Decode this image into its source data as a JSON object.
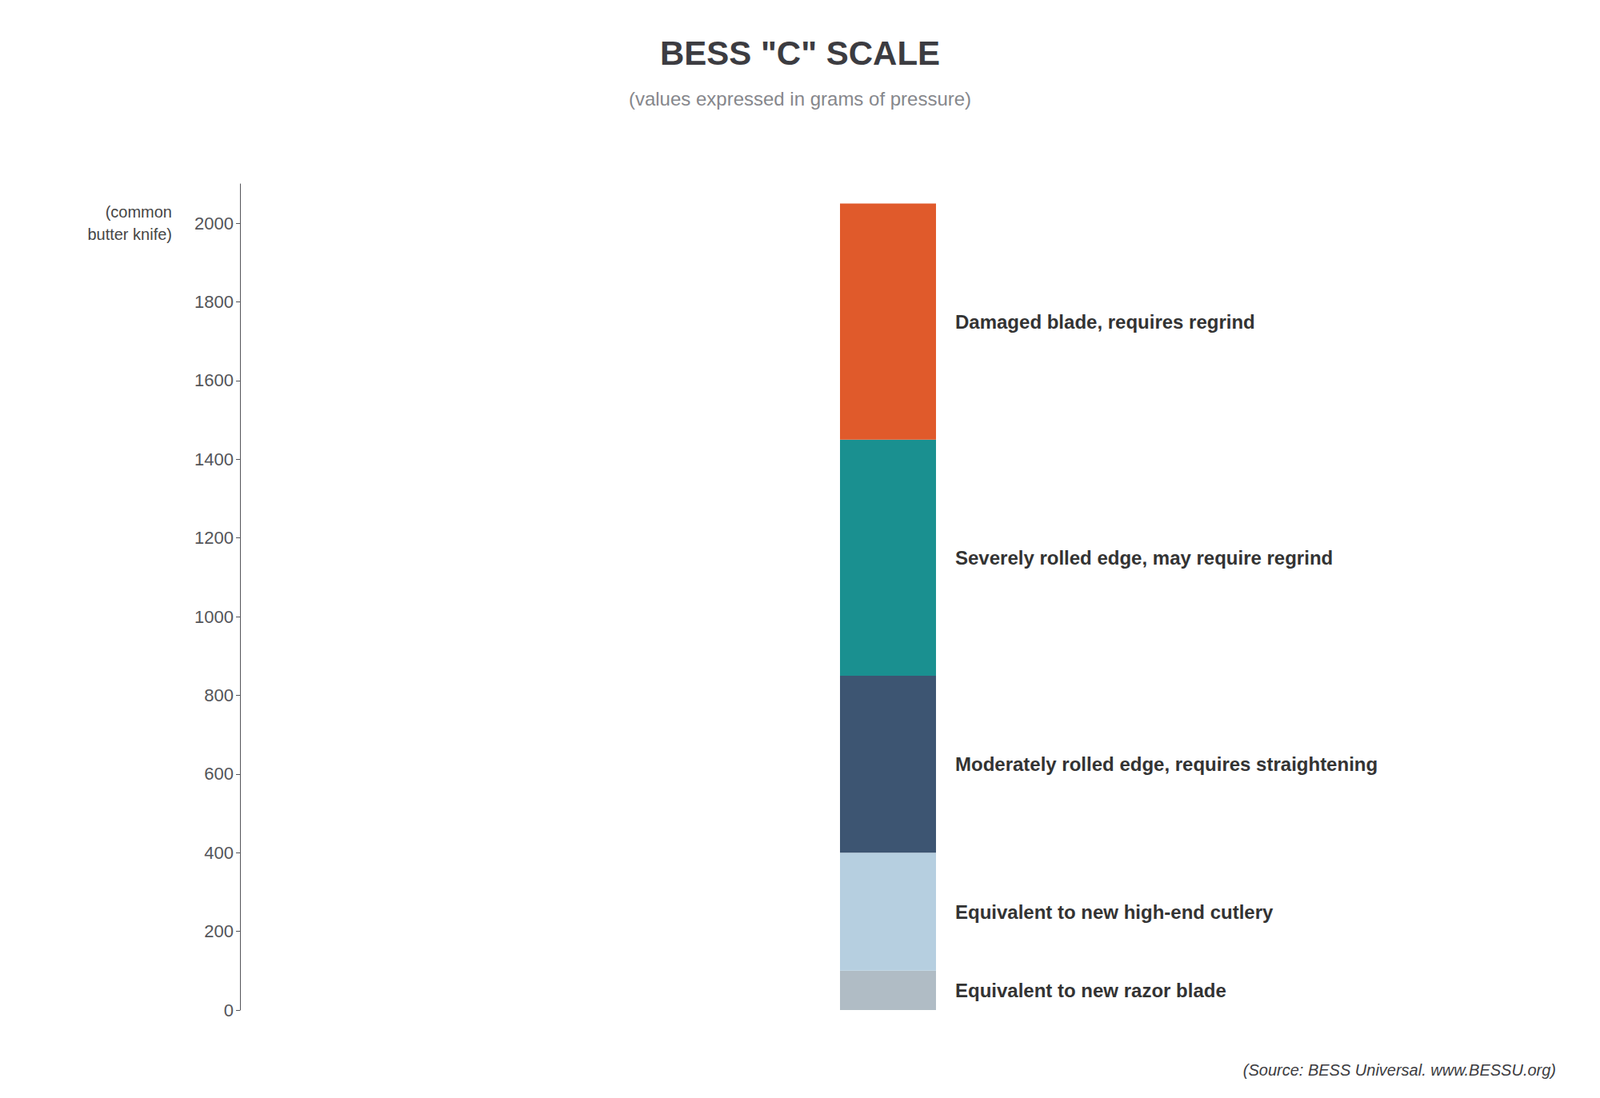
{
  "chart_data": {
    "type": "bar",
    "title": "BESS \"C\" SCALE",
    "subtitle": "(values expressed in grams of pressure)",
    "source": "(Source: BESS Universal. www.BESSU.org)",
    "categories": [
      null
    ],
    "stacked": true,
    "series": [
      {
        "name": "Equivalent to new razor blade",
        "color": "#b0bcc5",
        "values": [
          100
        ]
      },
      {
        "name": "Equivalent to new high-end cutlery",
        "color": "#b6cfe0",
        "values": [
          300
        ]
      },
      {
        "name": "Moderately rolled edge, requires straightening",
        "color": "#3d5572",
        "values": [
          450
        ]
      },
      {
        "name": "Severely rolled edge, may require regrind",
        "color": "#1a9090",
        "values": [
          600
        ]
      },
      {
        "name": "Damaged blade, requires regrind",
        "color": "#e05a2b",
        "values": [
          600
        ]
      }
    ],
    "ylim": [
      0,
      2100
    ],
    "yticks": [
      0,
      200,
      400,
      600,
      800,
      1000,
      1200,
      1400,
      1600,
      1800,
      2000
    ],
    "grid": false,
    "tick_labels": "y",
    "annotations": [
      {
        "text": "(common\nbutter knife)",
        "y": 2000
      }
    ]
  }
}
